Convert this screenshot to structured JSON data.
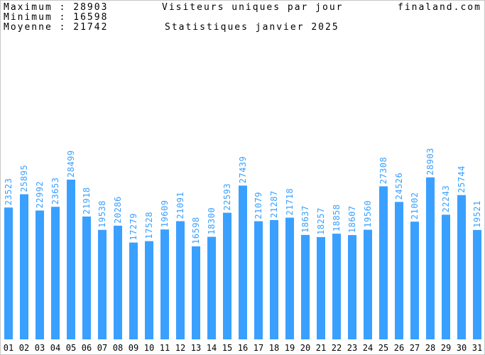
{
  "header": {
    "maximum_label": "Maximum : ",
    "maximum_value": "28903",
    "minimum_label": "Minimum : ",
    "minimum_value": "16598",
    "moyenne_label": "Moyenne : ",
    "moyenne_value": "21742",
    "title": "Visiteurs uniques par jour",
    "subtitle": "Statistiques janvier 2025",
    "site": "finaland.com"
  },
  "colors": {
    "bar": "#3aa0ff",
    "value_label": "#3aa0ff",
    "grid": "#c8c8c8"
  },
  "chart_data": {
    "type": "bar",
    "categories": [
      "01",
      "02",
      "03",
      "04",
      "05",
      "06",
      "07",
      "08",
      "09",
      "10",
      "11",
      "12",
      "13",
      "14",
      "15",
      "16",
      "17",
      "18",
      "19",
      "20",
      "21",
      "22",
      "23",
      "24",
      "25",
      "26",
      "27",
      "28",
      "29",
      "30",
      "31"
    ],
    "values": [
      23523,
      25895,
      22992,
      23653,
      28499,
      21918,
      19538,
      20286,
      17279,
      17528,
      19609,
      21091,
      16598,
      18300,
      22593,
      27439,
      21079,
      21287,
      21718,
      18637,
      18257,
      18858,
      18607,
      19560,
      27308,
      24526,
      21002,
      28903,
      22243,
      25744,
      19521
    ],
    "title": "Visiteurs uniques par jour",
    "subtitle": "Statistiques janvier 2025",
    "xlabel": "",
    "ylabel": "",
    "ylim": [
      0,
      38000
    ],
    "grid": false,
    "legend": "none"
  }
}
